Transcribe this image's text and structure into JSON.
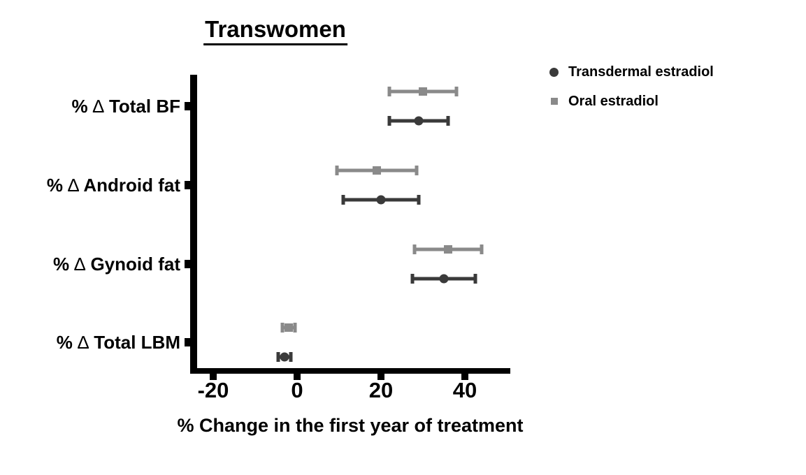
{
  "figure": {
    "background": "#ffffff",
    "text_color": "#000000",
    "axis_color": "#000000"
  },
  "chart_data": {
    "type": "scatter",
    "variant": "horizontal dot plot with error bars (forest-style)",
    "title": "Transwomen",
    "xlabel": "% Change in the first year of treatment",
    "xlim": [
      -25,
      51
    ],
    "grid": false,
    "legend_position": "top-right",
    "xticks": [
      {
        "value": -20,
        "label": "-20"
      },
      {
        "value": 0,
        "label": "0"
      },
      {
        "value": 20,
        "label": "20"
      },
      {
        "value": 40,
        "label": "40"
      }
    ],
    "categories": [
      {
        "label": "% ∆ Total BF"
      },
      {
        "label": "% ∆ Android fat"
      },
      {
        "label": "% ∆ Gynoid fat"
      },
      {
        "label": "% ∆ Total LBM"
      }
    ],
    "row_order_within_category": [
      "Oral estradiol",
      "Transdermal estradiol"
    ],
    "series": [
      {
        "name": "Transdermal estradiol",
        "marker": "circle",
        "color": "#3a3a3a",
        "values": [
          {
            "category": "% ∆ Total BF",
            "mean": 29,
            "ci_low": 22,
            "ci_high": 36
          },
          {
            "category": "% ∆ Android fat",
            "mean": 20,
            "ci_low": 11,
            "ci_high": 29
          },
          {
            "category": "% ∆ Gynoid fat",
            "mean": 35,
            "ci_low": 27.5,
            "ci_high": 42.5
          },
          {
            "category": "% ∆ Total LBM",
            "mean": -3,
            "ci_low": -4.5,
            "ci_high": -1.5
          }
        ]
      },
      {
        "name": "Oral estradiol",
        "marker": "square",
        "color": "#8a8a8a",
        "values": [
          {
            "category": "% ∆ Total BF",
            "mean": 30,
            "ci_low": 22,
            "ci_high": 38
          },
          {
            "category": "% ∆ Android fat",
            "mean": 19,
            "ci_low": 9.5,
            "ci_high": 28.5
          },
          {
            "category": "% ∆ Gynoid fat",
            "mean": 36,
            "ci_low": 28,
            "ci_high": 44
          },
          {
            "category": "% ∆ Total LBM",
            "mean": -2,
            "ci_low": -3.5,
            "ci_high": -0.5
          }
        ]
      }
    ]
  }
}
